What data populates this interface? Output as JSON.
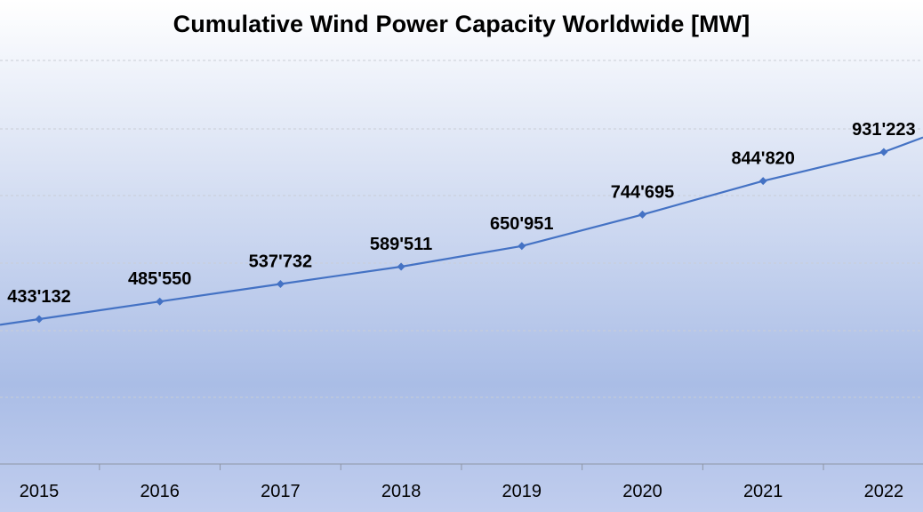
{
  "chart_data": {
    "type": "line",
    "title": "Cumulative Wind Power Capacity Worldwide [MW]",
    "xlabel": "",
    "ylabel": "",
    "categories": [
      "2015",
      "2016",
      "2017",
      "2018",
      "2019",
      "2020",
      "2021",
      "2022"
    ],
    "values": [
      433132,
      485550,
      537732,
      589511,
      650951,
      744695,
      844820,
      931223
    ],
    "data_labels": [
      "433'132",
      "485'550",
      "537'732",
      "589'511",
      "650'951",
      "744'695",
      "844'820",
      "931'223"
    ],
    "series_color": "#4472c4",
    "grid": true,
    "legend": "none"
  }
}
